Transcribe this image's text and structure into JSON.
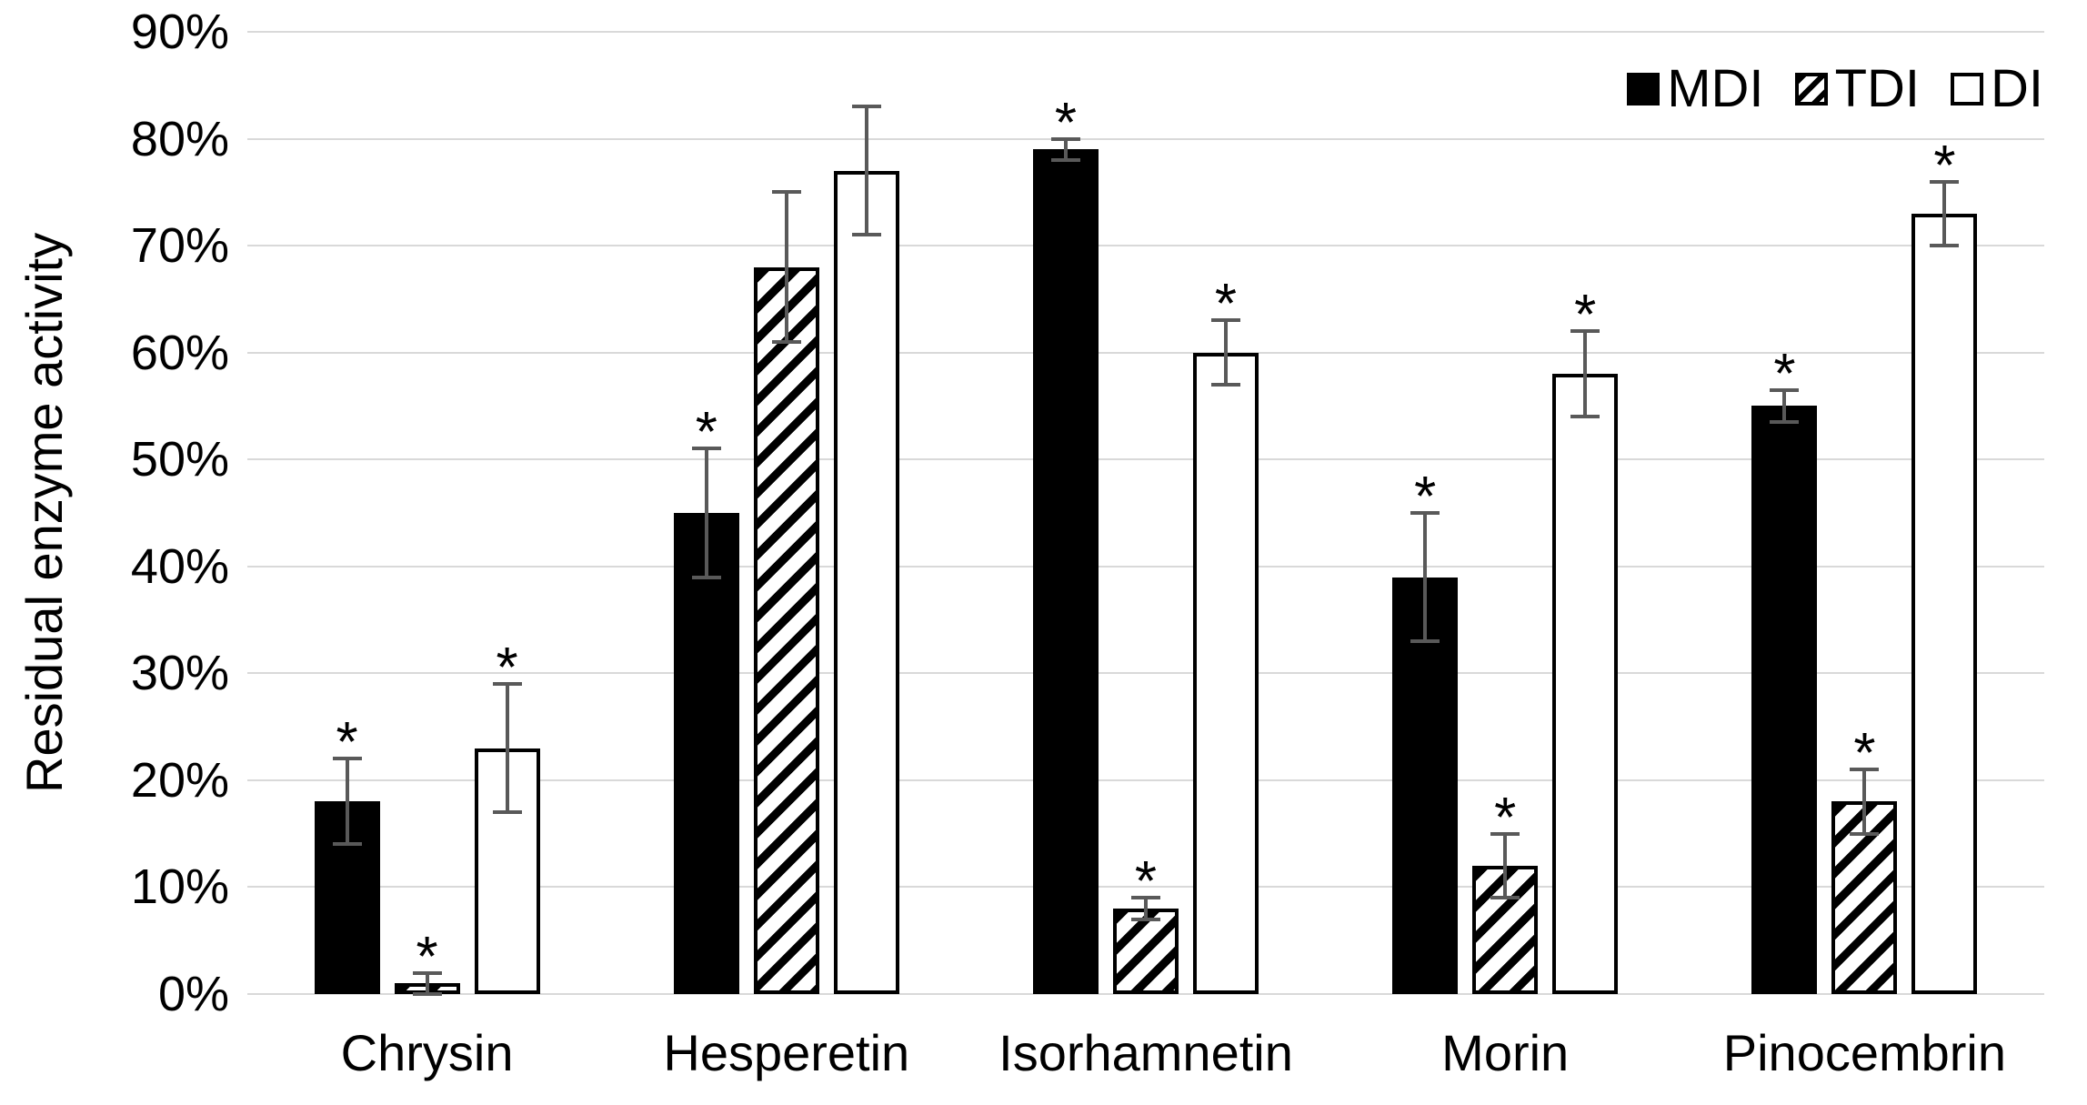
{
  "colors": {
    "background": "#ffffff",
    "bar_fill_black": "#000000",
    "bar_fill_white": "#ffffff",
    "bar_border": "#000000",
    "error_bar": "#595959",
    "gridline": "#d9d9d9",
    "text": "#000000"
  },
  "chart_data": {
    "type": "bar",
    "title": "",
    "xlabel": "",
    "ylabel": "Residual enzyme activity",
    "ylim": [
      0,
      90
    ],
    "ytick_step": 10,
    "ytick_labels": [
      "0%",
      "10%",
      "20%",
      "30%",
      "40%",
      "50%",
      "60%",
      "70%",
      "80%",
      "90%"
    ],
    "grid": true,
    "legend_position": "top-right",
    "significance_marker": "*",
    "categories": [
      "Chrysin",
      "Hesperetin",
      "Isorhamnetin",
      "Morin",
      "Pinocembrin"
    ],
    "series": [
      {
        "name": "MDI",
        "fill": "solid-black",
        "values": [
          18,
          45,
          79,
          39,
          55
        ],
        "errors": [
          4,
          6,
          1,
          6,
          1.5
        ],
        "significant": [
          true,
          true,
          true,
          true,
          true
        ]
      },
      {
        "name": "TDI",
        "fill": "diagonal-hatch",
        "values": [
          1,
          68,
          8,
          12,
          18
        ],
        "errors": [
          1,
          7,
          1,
          3,
          3
        ],
        "significant": [
          true,
          false,
          true,
          true,
          true
        ]
      },
      {
        "name": "DI",
        "fill": "white-outline",
        "values": [
          23,
          77,
          60,
          58,
          73
        ],
        "errors": [
          6,
          6,
          3,
          4,
          3
        ],
        "significant": [
          true,
          false,
          true,
          true,
          true
        ]
      }
    ]
  }
}
